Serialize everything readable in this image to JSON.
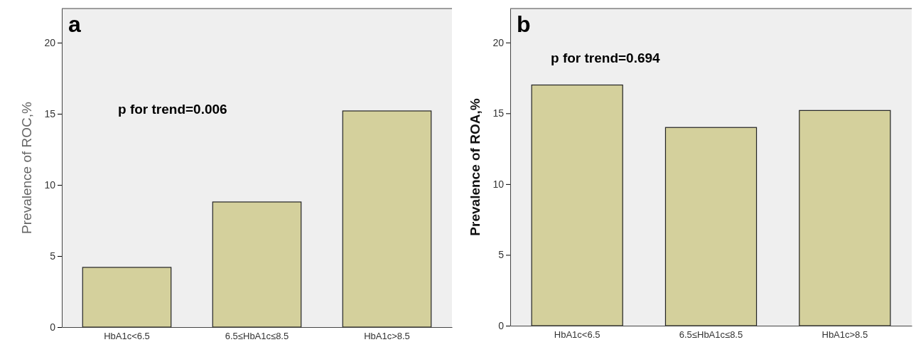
{
  "chart_data": [
    {
      "type": "bar",
      "categories": [
        "HbA1c<6.5",
        "6.5≤HbA1c≤8.5",
        "HbA1c>8.5"
      ],
      "values": [
        4.2,
        8.8,
        15.2
      ],
      "color": "#d4d09c",
      "ylabel": "Prevalence of  ROC,%",
      "ylim": [
        0,
        22.4
      ],
      "yticks": [
        0,
        5,
        10,
        15,
        20
      ],
      "annotations": [
        "a",
        "p for trend=0.006"
      ]
    },
    {
      "type": "bar",
      "categories": [
        "HbA1c<6.5",
        "6.5≤HbA1c≤8.5",
        "HbA1c>8.5"
      ],
      "values": [
        17.0,
        14.0,
        15.2
      ],
      "color": "#d4d09c",
      "ylabel": "Prevalence of ROA,%",
      "ylim": [
        0,
        22.4
      ],
      "yticks": [
        0,
        5,
        10,
        15,
        20
      ],
      "annotations": [
        "b",
        "p for trend=0.694"
      ]
    }
  ]
}
